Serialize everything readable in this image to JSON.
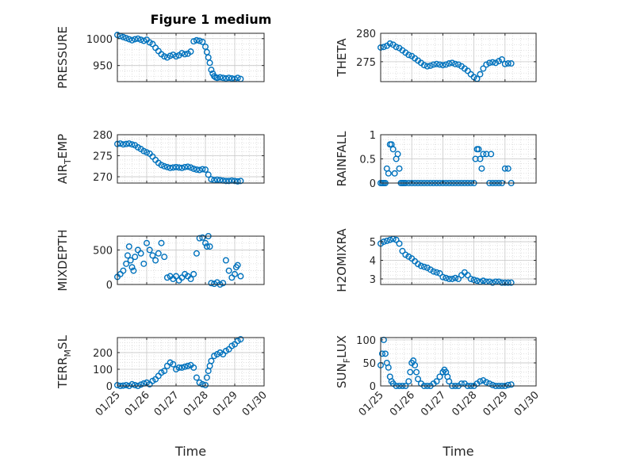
{
  "figure_title": "Figure 1 medium",
  "marker_color": "#0072BD",
  "chart_data": [
    {
      "type": "scatter",
      "id": "pressure",
      "ylabel": "PRESSURE",
      "ylabel_sub": "",
      "xlabel": "",
      "ylim": [
        920,
        1010
      ],
      "yticks": [
        950,
        1000
      ],
      "ytick_labels": [
        "950",
        "1000"
      ],
      "xlim": [
        0,
        5
      ],
      "xticks": [
        0,
        1,
        2,
        3,
        4,
        5
      ],
      "xtick_labels": [],
      "grid": true,
      "minor_grid": true,
      "x": [
        0,
        0.1,
        0.2,
        0.3,
        0.4,
        0.5,
        0.6,
        0.7,
        0.8,
        0.9,
        1.0,
        1.1,
        1.2,
        1.3,
        1.4,
        1.5,
        1.6,
        1.7,
        1.8,
        1.9,
        2.0,
        2.1,
        2.2,
        2.3,
        2.4,
        2.5,
        2.6,
        2.7,
        2.8,
        2.9,
        3.0,
        3.05,
        3.1,
        3.15,
        3.2,
        3.25,
        3.3,
        3.35,
        3.4,
        3.5,
        3.6,
        3.7,
        3.8,
        3.9,
        4.0,
        4.1,
        4.2
      ],
      "y": [
        1007,
        1005,
        1003,
        1001,
        999,
        997,
        999,
        1000,
        998,
        996,
        998,
        993,
        990,
        983,
        977,
        971,
        967,
        965,
        968,
        970,
        967,
        969,
        973,
        971,
        972,
        976,
        995,
        997,
        996,
        994,
        985,
        975,
        965,
        955,
        942,
        935,
        930,
        928,
        927,
        928,
        927,
        926,
        927,
        926,
        925,
        927,
        925
      ]
    },
    {
      "type": "scatter",
      "id": "theta",
      "ylabel": "THETA",
      "ylabel_sub": "",
      "xlabel": "",
      "ylim": [
        271.5,
        280
      ],
      "yticks": [
        275,
        280
      ],
      "ytick_labels": [
        "275",
        "280"
      ],
      "xlim": [
        0,
        5
      ],
      "xticks": [
        0,
        1,
        2,
        3,
        4,
        5
      ],
      "xtick_labels": [],
      "grid": true,
      "minor_grid": true,
      "x": [
        0,
        0.1,
        0.2,
        0.3,
        0.4,
        0.5,
        0.6,
        0.7,
        0.8,
        0.9,
        1.0,
        1.1,
        1.2,
        1.3,
        1.4,
        1.5,
        1.6,
        1.7,
        1.8,
        1.9,
        2.0,
        2.1,
        2.2,
        2.3,
        2.4,
        2.5,
        2.6,
        2.7,
        2.8,
        2.9,
        3.0,
        3.1,
        3.2,
        3.3,
        3.4,
        3.5,
        3.6,
        3.7,
        3.8,
        3.9,
        4.0,
        4.1,
        4.2
      ],
      "y": [
        277.5,
        277.6,
        277.8,
        278.2,
        278.0,
        277.6,
        277.4,
        277.0,
        276.6,
        276.2,
        276.0,
        275.6,
        275.2,
        274.8,
        274.4,
        274.2,
        274.3,
        274.5,
        274.6,
        274.5,
        274.4,
        274.5,
        274.7,
        274.8,
        274.6,
        274.5,
        274.2,
        273.8,
        273.4,
        272.8,
        272.3,
        272.0,
        272.8,
        273.8,
        274.5,
        274.8,
        274.9,
        274.8,
        275.1,
        275.4,
        274.6,
        274.7,
        274.7
      ]
    },
    {
      "type": "scatter",
      "id": "air_temp",
      "ylabel": "AIR",
      "ylabel_sub": "T",
      "ylabel_rest": "EMP",
      "xlabel": "",
      "ylim": [
        268.5,
        280
      ],
      "yticks": [
        270,
        275,
        280
      ],
      "ytick_labels": [
        "270",
        "275",
        "280"
      ],
      "xlim": [
        0,
        5
      ],
      "xticks": [
        0,
        1,
        2,
        3,
        4,
        5
      ],
      "xtick_labels": [],
      "grid": true,
      "minor_grid": true,
      "x": [
        0,
        0.1,
        0.2,
        0.3,
        0.4,
        0.5,
        0.6,
        0.7,
        0.8,
        0.9,
        1.0,
        1.1,
        1.2,
        1.3,
        1.4,
        1.5,
        1.6,
        1.7,
        1.8,
        1.9,
        2.0,
        2.1,
        2.2,
        2.3,
        2.4,
        2.5,
        2.6,
        2.7,
        2.8,
        2.9,
        3.0,
        3.1,
        3.2,
        3.3,
        3.4,
        3.5,
        3.6,
        3.7,
        3.8,
        3.9,
        4.0,
        4.1,
        4.2
      ],
      "y": [
        277.8,
        277.9,
        277.7,
        277.8,
        277.9,
        277.7,
        277.5,
        277.0,
        276.6,
        276.1,
        275.8,
        275.5,
        274.8,
        274.0,
        273.3,
        272.8,
        272.5,
        272.3,
        272.1,
        272.2,
        272.3,
        272.2,
        272.1,
        272.3,
        272.4,
        272.2,
        271.9,
        271.7,
        271.6,
        271.8,
        271.7,
        270.5,
        269.4,
        269.2,
        269.3,
        269.2,
        269.1,
        269.0,
        269.0,
        269.1,
        269.0,
        268.9,
        269.0
      ]
    },
    {
      "type": "scatter",
      "id": "rainfall",
      "ylabel": "RAINFALL",
      "ylabel_sub": "",
      "xlabel": "",
      "ylim": [
        0,
        1
      ],
      "yticks": [
        0,
        0.5,
        1
      ],
      "ytick_labels": [
        "0",
        "0.5",
        "1"
      ],
      "xlim": [
        0,
        5
      ],
      "xticks": [
        0,
        1,
        2,
        3,
        4,
        5
      ],
      "xtick_labels": [],
      "grid": true,
      "minor_grid": true,
      "x": [
        0,
        0.05,
        0.1,
        0.15,
        0.2,
        0.25,
        0.3,
        0.35,
        0.4,
        0.45,
        0.5,
        0.55,
        0.6,
        0.65,
        0.7,
        0.75,
        0.8,
        0.9,
        1.0,
        1.1,
        1.2,
        1.3,
        1.4,
        1.5,
        1.6,
        1.7,
        1.8,
        1.9,
        2.0,
        2.1,
        2.2,
        2.3,
        2.4,
        2.5,
        2.6,
        2.7,
        2.8,
        2.9,
        3.0,
        3.05,
        3.1,
        3.15,
        3.2,
        3.25,
        3.3,
        3.4,
        3.5,
        3.55,
        3.6,
        3.7,
        3.8,
        3.9,
        4.0,
        4.1,
        4.2
      ],
      "y": [
        0,
        0,
        0,
        0,
        0.3,
        0.2,
        0.8,
        0.8,
        0.7,
        0.2,
        0.5,
        0.6,
        0.3,
        0,
        0,
        0,
        0,
        0,
        0,
        0,
        0,
        0,
        0,
        0,
        0,
        0,
        0,
        0,
        0,
        0,
        0,
        0,
        0,
        0,
        0,
        0,
        0,
        0,
        0,
        0.5,
        0.7,
        0.7,
        0.5,
        0.3,
        0.6,
        0.6,
        0,
        0.6,
        0,
        0,
        0,
        0,
        0.3,
        0.3,
        0
      ]
    },
    {
      "type": "scatter",
      "id": "mixdepth",
      "ylabel": "MIXDEPTH",
      "ylabel_sub": "",
      "xlabel": "",
      "ylim": [
        0,
        700
      ],
      "yticks": [
        0,
        500
      ],
      "ytick_labels": [
        "0",
        "500"
      ],
      "xlim": [
        0,
        5
      ],
      "xticks": [
        0,
        1,
        2,
        3,
        4,
        5
      ],
      "xtick_labels": [],
      "grid": true,
      "minor_grid": true,
      "x": [
        0,
        0.1,
        0.2,
        0.3,
        0.35,
        0.4,
        0.45,
        0.5,
        0.55,
        0.6,
        0.7,
        0.8,
        0.9,
        1.0,
        1.1,
        1.2,
        1.3,
        1.4,
        1.5,
        1.6,
        1.7,
        1.8,
        1.9,
        2.0,
        2.1,
        2.2,
        2.3,
        2.4,
        2.5,
        2.6,
        2.7,
        2.8,
        2.9,
        3.0,
        3.05,
        3.1,
        3.15,
        3.2,
        3.3,
        3.4,
        3.5,
        3.6,
        3.7,
        3.8,
        3.9,
        4.0,
        4.05,
        4.1,
        4.2
      ],
      "y": [
        110,
        150,
        200,
        300,
        420,
        550,
        350,
        250,
        200,
        400,
        500,
        450,
        300,
        600,
        500,
        420,
        350,
        450,
        600,
        400,
        100,
        120,
        80,
        120,
        60,
        100,
        150,
        120,
        80,
        150,
        450,
        670,
        680,
        600,
        550,
        700,
        550,
        20,
        10,
        30,
        0,
        20,
        350,
        200,
        100,
        150,
        250,
        280,
        120
      ]
    },
    {
      "type": "scatter",
      "id": "h2omixra",
      "ylabel": "H2OMIXRA",
      "ylabel_sub": "",
      "xlabel": "",
      "ylim": [
        2.7,
        5.3
      ],
      "yticks": [
        3,
        4,
        5
      ],
      "ytick_labels": [
        "3",
        "4",
        "5"
      ],
      "xlim": [
        0,
        5
      ],
      "xticks": [
        0,
        1,
        2,
        3,
        4,
        5
      ],
      "xtick_labels": [],
      "grid": true,
      "minor_grid": true,
      "x": [
        0,
        0.1,
        0.2,
        0.3,
        0.4,
        0.5,
        0.6,
        0.7,
        0.8,
        0.9,
        1.0,
        1.1,
        1.2,
        1.3,
        1.4,
        1.5,
        1.6,
        1.7,
        1.8,
        1.9,
        2.0,
        2.1,
        2.2,
        2.3,
        2.4,
        2.5,
        2.6,
        2.7,
        2.8,
        2.9,
        3.0,
        3.1,
        3.2,
        3.3,
        3.4,
        3.5,
        3.6,
        3.7,
        3.8,
        3.9,
        4.0,
        4.1,
        4.2
      ],
      "y": [
        4.9,
        5.0,
        5.05,
        5.1,
        5.15,
        5.1,
        4.9,
        4.5,
        4.3,
        4.2,
        4.1,
        3.95,
        3.8,
        3.7,
        3.65,
        3.6,
        3.5,
        3.4,
        3.35,
        3.3,
        3.1,
        3.05,
        3.0,
        3.0,
        3.05,
        3.0,
        3.2,
        3.35,
        3.2,
        3.0,
        2.95,
        2.9,
        2.85,
        2.9,
        2.85,
        2.85,
        2.8,
        2.85,
        2.85,
        2.8,
        2.8,
        2.8,
        2.8
      ]
    },
    {
      "type": "scatter",
      "id": "terr_msl",
      "ylabel": "TERR",
      "ylabel_sub": "M",
      "ylabel_rest": "SL",
      "xlabel": "Time",
      "ylim": [
        0,
        290
      ],
      "yticks": [
        0,
        100,
        200
      ],
      "ytick_labels": [
        "0",
        "100",
        "200"
      ],
      "xlim": [
        0,
        5
      ],
      "xticks": [
        0,
        1,
        2,
        3,
        4,
        5
      ],
      "xtick_labels": [
        "01/25",
        "01/26",
        "01/27",
        "01/28",
        "01/29",
        "01/30"
      ],
      "grid": true,
      "minor_grid": true,
      "x": [
        0,
        0.1,
        0.2,
        0.3,
        0.4,
        0.5,
        0.6,
        0.7,
        0.8,
        0.9,
        1.0,
        1.1,
        1.2,
        1.3,
        1.4,
        1.5,
        1.6,
        1.7,
        1.8,
        1.9,
        2.0,
        2.1,
        2.2,
        2.3,
        2.4,
        2.5,
        2.6,
        2.7,
        2.8,
        2.9,
        3.0,
        3.05,
        3.1,
        3.15,
        3.2,
        3.3,
        3.4,
        3.5,
        3.6,
        3.7,
        3.8,
        3.9,
        4.0,
        4.1,
        4.2
      ],
      "y": [
        5,
        0,
        2,
        5,
        0,
        10,
        5,
        0,
        8,
        15,
        20,
        10,
        30,
        40,
        60,
        80,
        90,
        120,
        140,
        130,
        100,
        110,
        110,
        115,
        120,
        125,
        110,
        50,
        20,
        10,
        5,
        50,
        90,
        120,
        150,
        180,
        190,
        200,
        190,
        210,
        220,
        240,
        250,
        270,
        280
      ]
    },
    {
      "type": "scatter",
      "id": "sun_flux",
      "ylabel": "SUN",
      "ylabel_sub": "F",
      "ylabel_rest": "LUX",
      "xlabel": "Time",
      "ylim": [
        0,
        105
      ],
      "yticks": [
        0,
        50,
        100
      ],
      "ytick_labels": [
        "0",
        "50",
        "100"
      ],
      "xlim": [
        0,
        5
      ],
      "xticks": [
        0,
        1,
        2,
        3,
        4,
        5
      ],
      "xtick_labels": [
        "01/25",
        "01/26",
        "01/27",
        "01/28",
        "01/29",
        "01/30"
      ],
      "grid": true,
      "minor_grid": true,
      "x": [
        0,
        0.05,
        0.1,
        0.15,
        0.2,
        0.25,
        0.3,
        0.35,
        0.4,
        0.5,
        0.6,
        0.7,
        0.8,
        0.9,
        0.95,
        1.0,
        1.05,
        1.1,
        1.15,
        1.2,
        1.3,
        1.4,
        1.5,
        1.6,
        1.7,
        1.8,
        1.9,
        2.0,
        2.05,
        2.1,
        2.15,
        2.2,
        2.3,
        2.4,
        2.5,
        2.6,
        2.7,
        2.8,
        2.9,
        3.0,
        3.1,
        3.2,
        3.3,
        3.4,
        3.5,
        3.6,
        3.7,
        3.8,
        3.9,
        4.0,
        4.1,
        4.2
      ],
      "y": [
        45,
        70,
        100,
        70,
        50,
        40,
        20,
        10,
        5,
        0,
        0,
        0,
        0,
        10,
        30,
        50,
        55,
        45,
        30,
        15,
        5,
        0,
        0,
        0,
        5,
        10,
        20,
        30,
        35,
        30,
        20,
        10,
        0,
        0,
        0,
        5,
        5,
        0,
        0,
        0,
        5,
        10,
        12,
        8,
        5,
        2,
        0,
        0,
        0,
        0,
        2,
        3
      ]
    }
  ]
}
